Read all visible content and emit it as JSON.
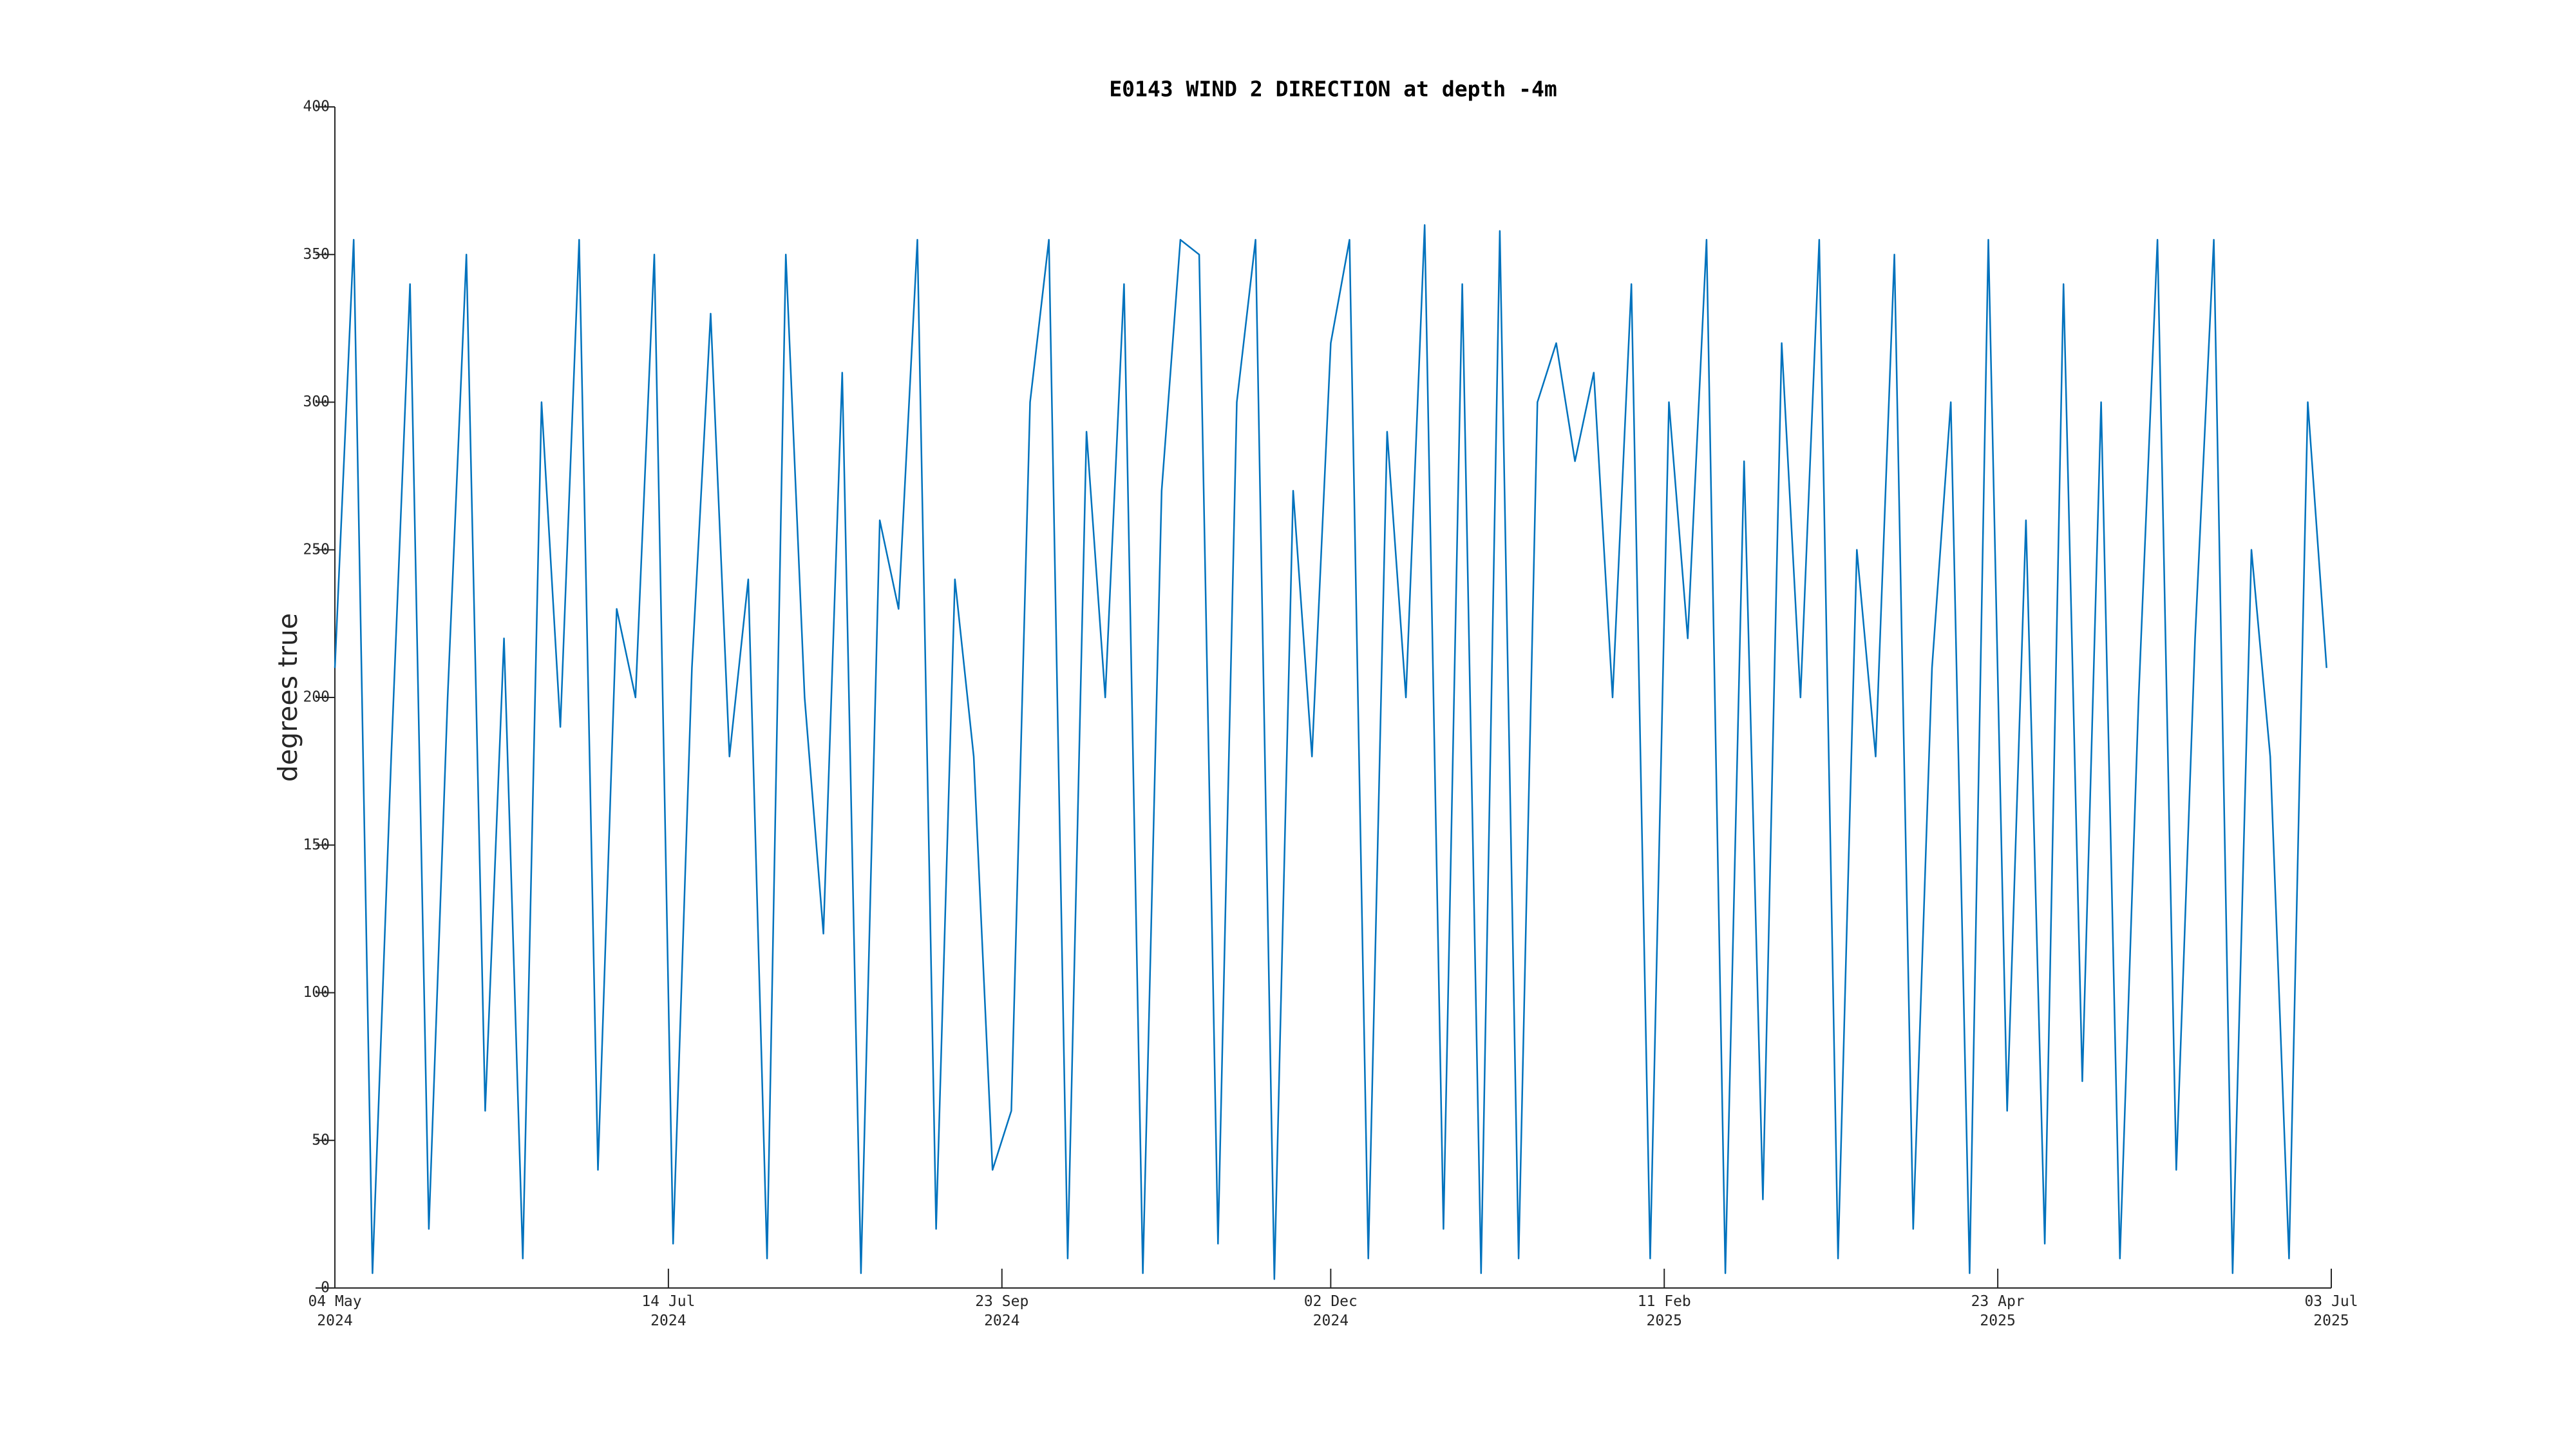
{
  "chart_data": {
    "type": "line",
    "title": "E0143 WIND 2 DIRECTION at depth -4m",
    "y_label": "degrees true",
    "x": [
      "2024-05-04",
      "2024-05-08",
      "2024-05-12",
      "2024-05-16",
      "2024-05-20",
      "2024-05-24",
      "2024-05-28",
      "2024-06-01",
      "2024-06-05",
      "2024-06-09",
      "2024-06-13",
      "2024-06-17",
      "2024-06-21",
      "2024-06-25",
      "2024-06-29",
      "2024-07-03",
      "2024-07-07",
      "2024-07-11",
      "2024-07-15",
      "2024-07-19",
      "2024-07-23",
      "2024-07-27",
      "2024-07-31",
      "2024-08-04",
      "2024-08-08",
      "2024-08-12",
      "2024-08-16",
      "2024-08-20",
      "2024-08-24",
      "2024-08-28",
      "2024-09-01",
      "2024-09-05",
      "2024-09-09",
      "2024-09-13",
      "2024-09-17",
      "2024-09-21",
      "2024-09-25",
      "2024-09-29",
      "2024-10-03",
      "2024-10-07",
      "2024-10-11",
      "2024-10-15",
      "2024-10-19",
      "2024-10-23",
      "2024-10-27",
      "2024-10-31",
      "2024-11-04",
      "2024-11-08",
      "2024-11-12",
      "2024-11-16",
      "2024-11-20",
      "2024-11-24",
      "2024-11-28",
      "2024-12-02",
      "2024-12-06",
      "2024-12-10",
      "2024-12-14",
      "2024-12-18",
      "2024-12-22",
      "2024-12-26",
      "2024-12-30",
      "2025-01-03",
      "2025-01-07",
      "2025-01-11",
      "2025-01-15",
      "2025-01-19",
      "2025-01-23",
      "2025-01-27",
      "2025-01-31",
      "2025-02-04",
      "2025-02-08",
      "2025-02-12",
      "2025-02-16",
      "2025-02-20",
      "2025-02-24",
      "2025-02-28",
      "2025-03-04",
      "2025-03-08",
      "2025-03-12",
      "2025-03-16",
      "2025-03-20",
      "2025-03-24",
      "2025-03-28",
      "2025-04-01",
      "2025-04-05",
      "2025-04-09",
      "2025-04-13",
      "2025-04-17",
      "2025-04-21",
      "2025-04-25",
      "2025-04-29",
      "2025-05-03",
      "2025-05-07",
      "2025-05-11",
      "2025-05-15",
      "2025-05-19",
      "2025-05-23",
      "2025-05-27",
      "2025-05-31",
      "2025-06-04",
      "2025-06-08",
      "2025-06-12",
      "2025-06-16",
      "2025-06-20",
      "2025-06-24",
      "2025-06-28",
      "2025-07-02"
    ],
    "series": [
      {
        "color": "#0072bd",
        "values": [
          210,
          355,
          5,
          180,
          340,
          20,
          200,
          350,
          60,
          220,
          10,
          300,
          190,
          355,
          40,
          230,
          200,
          350,
          15,
          210,
          330,
          180,
          240,
          10,
          350,
          200,
          120,
          310,
          5,
          260,
          230,
          355,
          20,
          240,
          180,
          40,
          60,
          300,
          355,
          10,
          290,
          200,
          340,
          5,
          270,
          355,
          350,
          15,
          300,
          355,
          3,
          270,
          180,
          320,
          355,
          10,
          290,
          200,
          360,
          20,
          340,
          5,
          358,
          10,
          300,
          320,
          280,
          310,
          200,
          340,
          10,
          300,
          220,
          355,
          5,
          280,
          30,
          320,
          200,
          355,
          10,
          250,
          180,
          350,
          20,
          210,
          300,
          5,
          355,
          60,
          260,
          15,
          340,
          70,
          300,
          10,
          200,
          355,
          40,
          220,
          355,
          5,
          250,
          180,
          10,
          300,
          210
        ]
      }
    ],
    "xlim": [
      "2024-05-04",
      "2025-07-03"
    ],
    "xticks": [
      {
        "value": "2024-05-04",
        "label": "04 May 2024"
      },
      {
        "value": "2024-07-14",
        "label": "14 Jul 2024"
      },
      {
        "value": "2024-09-23",
        "label": "23 Sep 2024"
      },
      {
        "value": "2024-12-02",
        "label": "02 Dec 2024"
      },
      {
        "value": "2025-02-11",
        "label": "11 Feb 2025"
      },
      {
        "value": "2025-04-23",
        "label": "23 Apr 2025"
      },
      {
        "value": "2025-07-03",
        "label": "03 Jul 2025"
      }
    ],
    "ylim": [
      0,
      400
    ],
    "yticks": [
      0,
      50,
      100,
      150,
      200,
      250,
      300,
      350,
      400
    ],
    "grid": false
  }
}
